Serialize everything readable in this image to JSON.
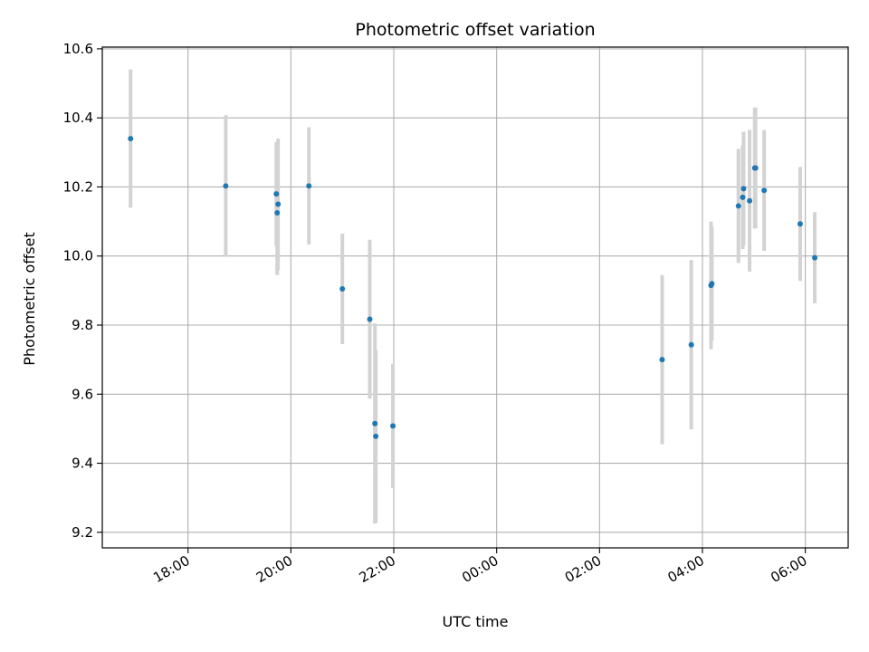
{
  "chart_data": {
    "type": "scatter",
    "title": "Photometric offset variation",
    "xlabel": "UTC time",
    "ylabel": "Photometric offset",
    "x_axis": "time",
    "xlim": [
      "2000-01-01T16:20",
      "2000-01-02T06:50"
    ],
    "ylim": [
      9.155,
      10.605
    ],
    "grid": true,
    "colors": {
      "point": "#1f77b4",
      "errorbar": "#d3d3d3",
      "grid": "#b0b0b0"
    },
    "x_ticks": [
      {
        "t": "2000-01-01T18:00",
        "label": "18:00"
      },
      {
        "t": "2000-01-01T20:00",
        "label": "20:00"
      },
      {
        "t": "2000-01-01T22:00",
        "label": "22:00"
      },
      {
        "t": "2000-01-02T00:00",
        "label": "00:00"
      },
      {
        "t": "2000-01-02T02:00",
        "label": "02:00"
      },
      {
        "t": "2000-01-02T04:00",
        "label": "04:00"
      },
      {
        "t": "2000-01-02T06:00",
        "label": "06:00"
      }
    ],
    "y_ticks": [
      {
        "v": 9.2,
        "label": "9.2"
      },
      {
        "v": 9.4,
        "label": "9.4"
      },
      {
        "v": 9.6,
        "label": "9.6"
      },
      {
        "v": 9.8,
        "label": "9.8"
      },
      {
        "v": 10.0,
        "label": "10.0"
      },
      {
        "v": 10.2,
        "label": "10.2"
      },
      {
        "v": 10.4,
        "label": "10.4"
      },
      {
        "v": 10.6,
        "label": "10.6"
      }
    ],
    "points": [
      {
        "t": "2000-01-01T16:53",
        "y": 10.34,
        "err": 0.2
      },
      {
        "t": "2000-01-01T18:44",
        "y": 10.203,
        "err": 0.205
      },
      {
        "t": "2000-01-01T19:43",
        "y": 10.18,
        "err": 0.15
      },
      {
        "t": "2000-01-01T19:44",
        "y": 10.125,
        "err": 0.18
      },
      {
        "t": "2000-01-01T19:45",
        "y": 10.15,
        "err": 0.19
      },
      {
        "t": "2000-01-01T20:21",
        "y": 10.203,
        "err": 0.17
      },
      {
        "t": "2000-01-01T21:00",
        "y": 9.905,
        "err": 0.16
      },
      {
        "t": "2000-01-01T21:32",
        "y": 9.817,
        "err": 0.23
      },
      {
        "t": "2000-01-01T21:38",
        "y": 9.515,
        "err": 0.29
      },
      {
        "t": "2000-01-01T21:39",
        "y": 9.478,
        "err": 0.25
      },
      {
        "t": "2000-01-01T21:59",
        "y": 9.508,
        "err": 0.18
      },
      {
        "t": "2000-01-02T03:13",
        "y": 9.7,
        "err": 0.245
      },
      {
        "t": "2000-01-02T03:47",
        "y": 9.743,
        "err": 0.245
      },
      {
        "t": "2000-01-02T04:10",
        "y": 9.915,
        "err": 0.185
      },
      {
        "t": "2000-01-02T04:11",
        "y": 9.92,
        "err": 0.165
      },
      {
        "t": "2000-01-02T04:42",
        "y": 10.145,
        "err": 0.165
      },
      {
        "t": "2000-01-02T04:47",
        "y": 10.17,
        "err": 0.15
      },
      {
        "t": "2000-01-02T04:48",
        "y": 10.195,
        "err": 0.165
      },
      {
        "t": "2000-01-02T04:55",
        "y": 10.16,
        "err": 0.205
      },
      {
        "t": "2000-01-02T05:01",
        "y": 10.255,
        "err": 0.175
      },
      {
        "t": "2000-01-02T05:02",
        "y": 10.255,
        "err": 0.175
      },
      {
        "t": "2000-01-02T05:12",
        "y": 10.19,
        "err": 0.175
      },
      {
        "t": "2000-01-02T05:54",
        "y": 10.093,
        "err": 0.165
      },
      {
        "t": "2000-01-02T06:11",
        "y": 9.995,
        "err": 0.132
      }
    ]
  }
}
